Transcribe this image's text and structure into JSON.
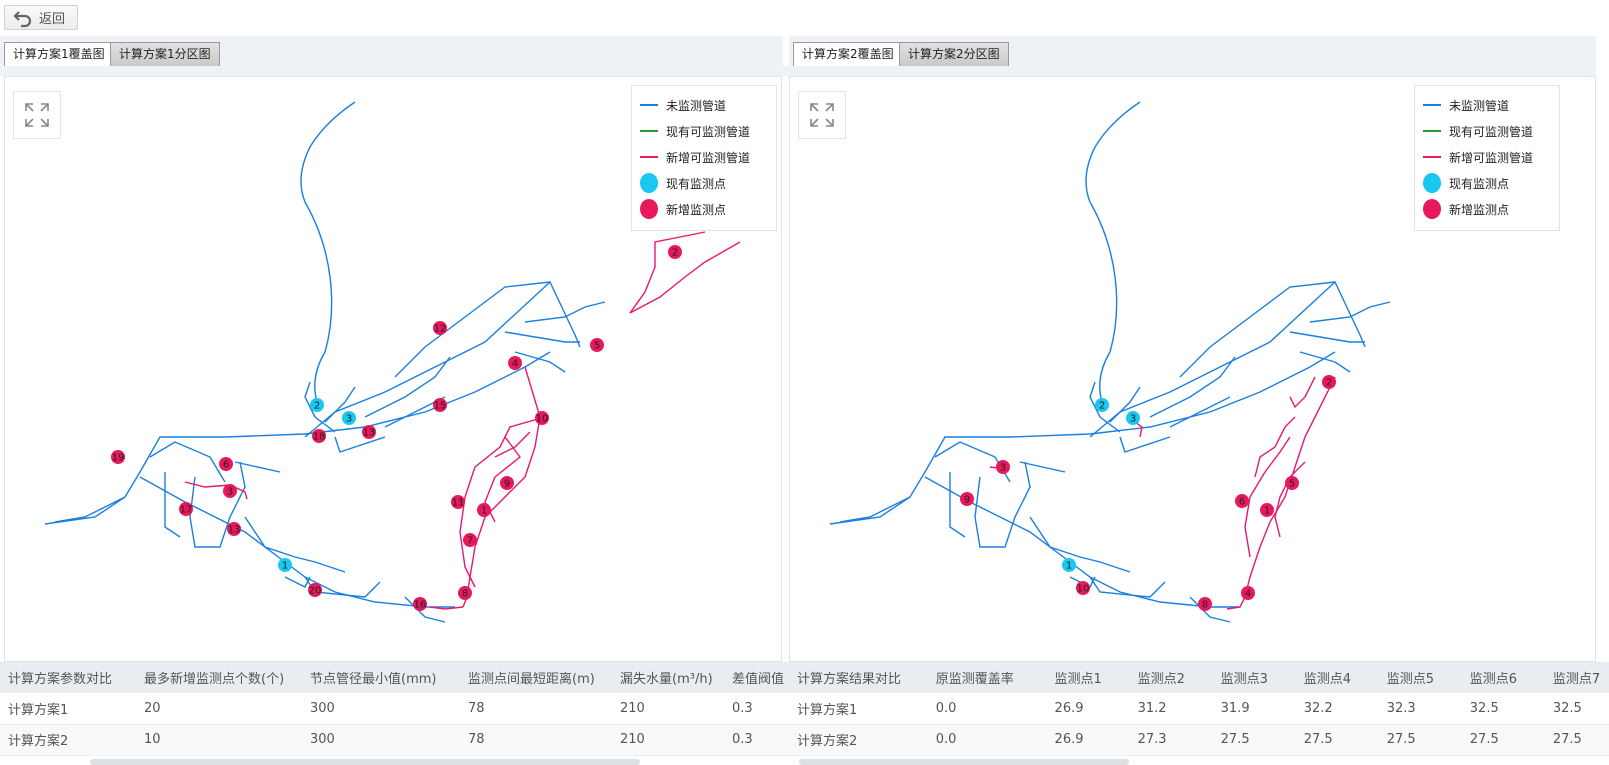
{
  "toolbar": {
    "back_label": "返回"
  },
  "colors": {
    "unmonitored": "#1a7fe0",
    "existing_pipe": "#2e9a2e",
    "new_pipe": "#e8186e",
    "existing_point": "#18c8f0",
    "new_point": "#e8185c"
  },
  "left": {
    "tabs": [
      {
        "label": "计算方案1覆盖图",
        "active": true
      },
      {
        "label": "计算方案1分区图",
        "active": false
      }
    ],
    "legend": [
      {
        "label": "未监测管道",
        "kind": "line",
        "color": "#1a7fe0"
      },
      {
        "label": "现有可监测管道",
        "kind": "line",
        "color": "#2e9a2e"
      },
      {
        "label": "新增可监测管道",
        "kind": "line",
        "color": "#e8186e"
      },
      {
        "label": "现有监测点",
        "kind": "dot",
        "color": "#18c8f0"
      },
      {
        "label": "新增监测点",
        "kind": "dot",
        "color": "#e8185c"
      }
    ],
    "points": [
      {
        "label": "1",
        "type": "existing"
      },
      {
        "label": "2",
        "type": "existing"
      },
      {
        "label": "3",
        "type": "existing"
      },
      {
        "label": "2",
        "type": "new"
      },
      {
        "label": "5",
        "type": "new"
      },
      {
        "label": "4",
        "type": "new"
      },
      {
        "label": "12",
        "type": "new"
      },
      {
        "label": "15",
        "type": "new"
      },
      {
        "label": "10",
        "type": "new"
      },
      {
        "label": "13",
        "type": "new"
      },
      {
        "label": "18",
        "type": "new"
      },
      {
        "label": "19",
        "type": "new"
      },
      {
        "label": "6",
        "type": "new"
      },
      {
        "label": "3",
        "type": "new"
      },
      {
        "label": "17",
        "type": "new"
      },
      {
        "label": "13",
        "type": "new"
      },
      {
        "label": "9",
        "type": "new"
      },
      {
        "label": "11",
        "type": "new"
      },
      {
        "label": "1",
        "type": "new"
      },
      {
        "label": "7",
        "type": "new"
      },
      {
        "label": "20",
        "type": "new"
      },
      {
        "label": "16",
        "type": "new"
      },
      {
        "label": "8",
        "type": "new"
      }
    ],
    "table": {
      "headers": [
        "计算方案参数对比",
        "最多新增监测点个数(个)",
        "节点管径最小值(mm)",
        "监测点间最短距离(m)",
        "漏失水量(m³/h)",
        "差值阀值"
      ],
      "rows": [
        [
          "计算方案1",
          "20",
          "300",
          "78",
          "210",
          "0.3"
        ],
        [
          "计算方案2",
          "10",
          "300",
          "78",
          "210",
          "0.3"
        ]
      ]
    }
  },
  "right": {
    "tabs": [
      {
        "label": "计算方案2覆盖图",
        "active": true
      },
      {
        "label": "计算方案2分区图",
        "active": false
      }
    ],
    "legend": [
      {
        "label": "未监测管道",
        "kind": "line",
        "color": "#1a7fe0"
      },
      {
        "label": "现有可监测管道",
        "kind": "line",
        "color": "#2e9a2e"
      },
      {
        "label": "新增可监测管道",
        "kind": "line",
        "color": "#e8186e"
      },
      {
        "label": "现有监测点",
        "kind": "dot",
        "color": "#18c8f0"
      },
      {
        "label": "新增监测点",
        "kind": "dot",
        "color": "#e8185c"
      }
    ],
    "points": [
      {
        "label": "1",
        "type": "existing"
      },
      {
        "label": "2",
        "type": "existing"
      },
      {
        "label": "3",
        "type": "existing"
      },
      {
        "label": "2",
        "type": "new"
      },
      {
        "label": "3",
        "type": "new"
      },
      {
        "label": "9",
        "type": "new"
      },
      {
        "label": "6",
        "type": "new"
      },
      {
        "label": "5",
        "type": "new"
      },
      {
        "label": "1",
        "type": "new"
      },
      {
        "label": "10",
        "type": "new"
      },
      {
        "label": "8",
        "type": "new"
      },
      {
        "label": "4",
        "type": "new"
      }
    ],
    "table": {
      "headers": [
        "计算方案结果对比",
        "原监测覆盖率",
        "监测点1",
        "监测点2",
        "监测点3",
        "监测点4",
        "监测点5",
        "监测点6",
        "监测点7"
      ],
      "rows": [
        [
          "计算方案1",
          "0.0",
          "26.9",
          "31.2",
          "31.9",
          "32.2",
          "32.3",
          "32.5",
          "32.5"
        ],
        [
          "计算方案2",
          "0.0",
          "26.9",
          "27.3",
          "27.5",
          "27.5",
          "27.5",
          "27.5",
          "27.5"
        ]
      ]
    }
  }
}
